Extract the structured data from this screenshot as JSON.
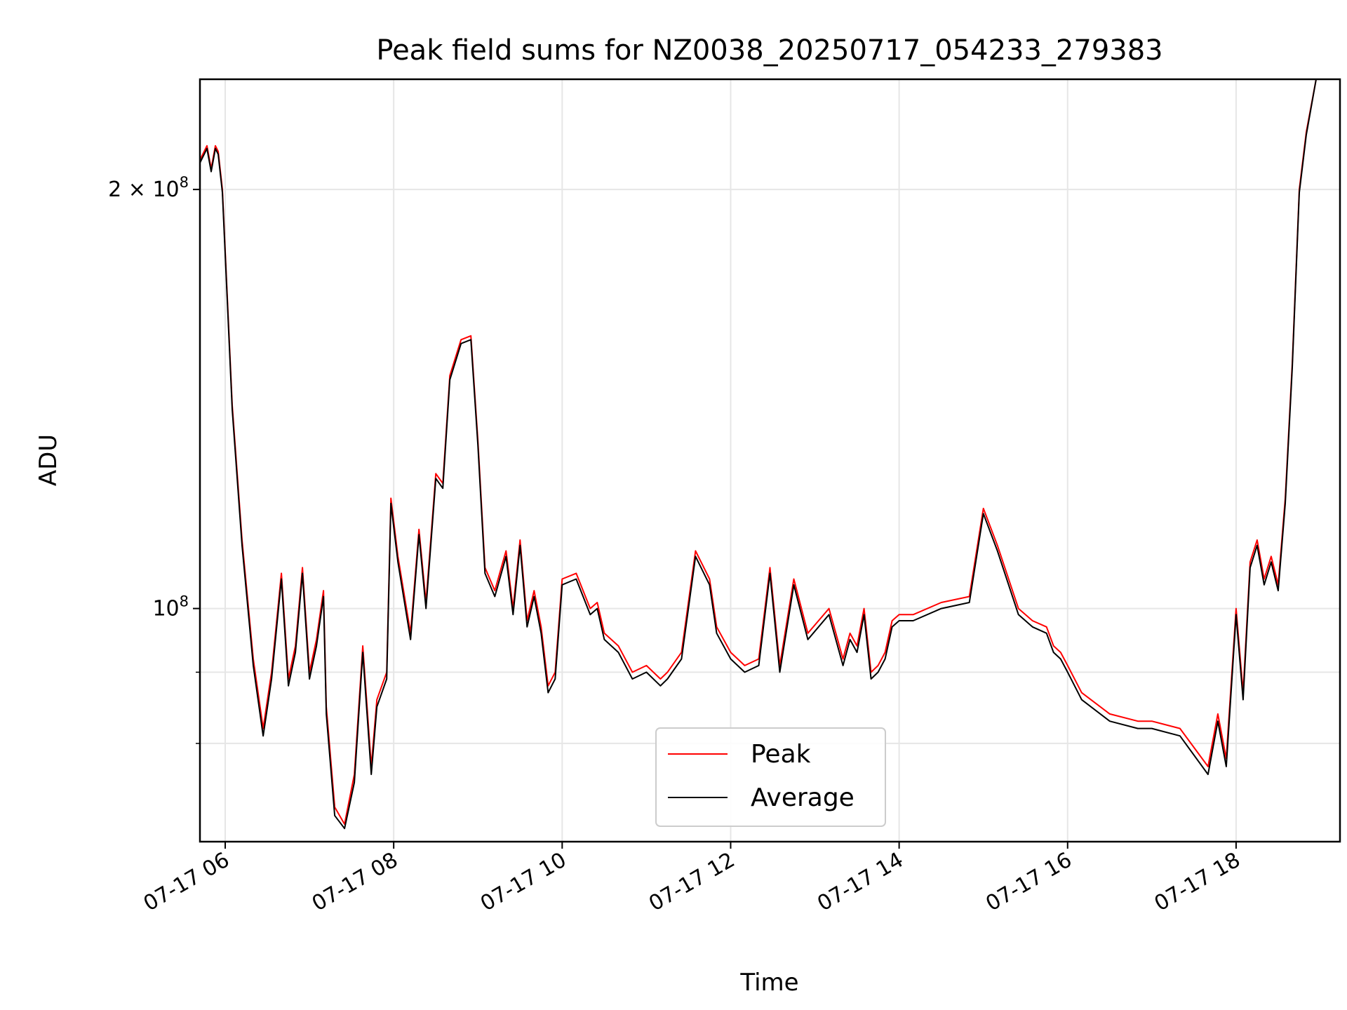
{
  "chart_data": {
    "type": "line",
    "title": "Peak field sums for NZ0038_20250717_054233_279383",
    "xlabel": "Time",
    "ylabel": "ADU",
    "y_scale": "log",
    "ylim": [
      68000000,
      240000000
    ],
    "xlim": [
      "2025-07-17 05:42",
      "2025-07-17 19:14"
    ],
    "grid": true,
    "legend_position": "lower-center",
    "x_ticks": [
      {
        "value": "2025-07-17 06:00",
        "label": "07-17 06"
      },
      {
        "value": "2025-07-17 08:00",
        "label": "07-17 08"
      },
      {
        "value": "2025-07-17 10:00",
        "label": "07-17 10"
      },
      {
        "value": "2025-07-17 12:00",
        "label": "07-17 12"
      },
      {
        "value": "2025-07-17 14:00",
        "label": "07-17 14"
      },
      {
        "value": "2025-07-17 16:00",
        "label": "07-17 16"
      },
      {
        "value": "2025-07-17 18:00",
        "label": "07-17 18"
      }
    ],
    "y_ticks_major": [
      {
        "value": 100000000,
        "base": "10",
        "exp": "8",
        "mantissa": ""
      },
      {
        "value": 200000000,
        "base": "10",
        "exp": "8",
        "mantissa": "2 × "
      }
    ],
    "y_ticks_minor": [
      80000000,
      90000000
    ],
    "x": [
      "2025-07-17 05:42",
      "2025-07-17 05:47",
      "2025-07-17 05:50",
      "2025-07-17 05:53",
      "2025-07-17 05:55",
      "2025-07-17 05:58",
      "2025-07-17 06:05",
      "2025-07-17 06:12",
      "2025-07-17 06:20",
      "2025-07-17 06:27",
      "2025-07-17 06:33",
      "2025-07-17 06:40",
      "2025-07-17 06:45",
      "2025-07-17 06:50",
      "2025-07-17 06:55",
      "2025-07-17 07:00",
      "2025-07-17 07:05",
      "2025-07-17 07:10",
      "2025-07-17 07:12",
      "2025-07-17 07:18",
      "2025-07-17 07:25",
      "2025-07-17 07:32",
      "2025-07-17 07:38",
      "2025-07-17 07:44",
      "2025-07-17 07:48",
      "2025-07-17 07:55",
      "2025-07-17 07:58",
      "2025-07-17 08:03",
      "2025-07-17 08:12",
      "2025-07-17 08:18",
      "2025-07-17 08:23",
      "2025-07-17 08:30",
      "2025-07-17 08:35",
      "2025-07-17 08:40",
      "2025-07-17 08:48",
      "2025-07-17 08:55",
      "2025-07-17 09:00",
      "2025-07-17 09:05",
      "2025-07-17 09:12",
      "2025-07-17 09:20",
      "2025-07-17 09:25",
      "2025-07-17 09:30",
      "2025-07-17 09:35",
      "2025-07-17 09:40",
      "2025-07-17 09:45",
      "2025-07-17 09:50",
      "2025-07-17 09:55",
      "2025-07-17 10:00",
      "2025-07-17 10:10",
      "2025-07-17 10:20",
      "2025-07-17 10:25",
      "2025-07-17 10:30",
      "2025-07-17 10:40",
      "2025-07-17 10:50",
      "2025-07-17 11:00",
      "2025-07-17 11:10",
      "2025-07-17 11:15",
      "2025-07-17 11:25",
      "2025-07-17 11:35",
      "2025-07-17 11:45",
      "2025-07-17 11:50",
      "2025-07-17 12:00",
      "2025-07-17 12:10",
      "2025-07-17 12:20",
      "2025-07-17 12:28",
      "2025-07-17 12:35",
      "2025-07-17 12:45",
      "2025-07-17 12:55",
      "2025-07-17 13:10",
      "2025-07-17 13:20",
      "2025-07-17 13:25",
      "2025-07-17 13:30",
      "2025-07-17 13:35",
      "2025-07-17 13:40",
      "2025-07-17 13:45",
      "2025-07-17 13:50",
      "2025-07-17 13:55",
      "2025-07-17 14:00",
      "2025-07-17 14:10",
      "2025-07-17 14:30",
      "2025-07-17 14:50",
      "2025-07-17 15:00",
      "2025-07-17 15:10",
      "2025-07-17 15:25",
      "2025-07-17 15:35",
      "2025-07-17 15:45",
      "2025-07-17 15:50",
      "2025-07-17 15:55",
      "2025-07-17 16:00",
      "2025-07-17 16:10",
      "2025-07-17 16:30",
      "2025-07-17 16:50",
      "2025-07-17 17:00",
      "2025-07-17 17:20",
      "2025-07-17 17:40",
      "2025-07-17 17:47",
      "2025-07-17 17:53",
      "2025-07-17 18:00",
      "2025-07-17 18:05",
      "2025-07-17 18:10",
      "2025-07-17 18:15",
      "2025-07-17 18:20",
      "2025-07-17 18:25",
      "2025-07-17 18:30",
      "2025-07-17 18:35",
      "2025-07-17 18:40",
      "2025-07-17 18:45",
      "2025-07-17 18:50",
      "2025-07-17 18:57",
      "2025-07-17 19:03",
      "2025-07-17 19:07",
      "2025-07-17 19:10"
    ],
    "series": [
      {
        "name": "Peak",
        "color": "#ff0000",
        "values": [
          210000000,
          215000000,
          207000000,
          215000000,
          213000000,
          200000000,
          140000000,
          112000000,
          92000000,
          82000000,
          90000000,
          106000000,
          89000000,
          94000000,
          107000000,
          90000000,
          95000000,
          103000000,
          85000000,
          72000000,
          70000000,
          76000000,
          94000000,
          77000000,
          86000000,
          90000000,
          120000000,
          109000000,
          96000000,
          114000000,
          101000000,
          125000000,
          123000000,
          147000000,
          156000000,
          157000000,
          132000000,
          107000000,
          103000000,
          110000000,
          100000000,
          112000000,
          98000000,
          103000000,
          97000000,
          88000000,
          90000000,
          105000000,
          106000000,
          100000000,
          101000000,
          96000000,
          94000000,
          90000000,
          91000000,
          89000000,
          90000000,
          93000000,
          110000000,
          105000000,
          97000000,
          93000000,
          91000000,
          92000000,
          107000000,
          91000000,
          105000000,
          96000000,
          100000000,
          92000000,
          96000000,
          94000000,
          100000000,
          90000000,
          91000000,
          93000000,
          98000000,
          99000000,
          99000000,
          101000000,
          102000000,
          118000000,
          111000000,
          100000000,
          98000000,
          97000000,
          94000000,
          93000000,
          91000000,
          87000000,
          84000000,
          83000000,
          83000000,
          82000000,
          77000000,
          84000000,
          78000000,
          100000000,
          87000000,
          108000000,
          112000000,
          105000000,
          109000000,
          104000000,
          120000000,
          150000000,
          200000000,
          220000000,
          240000000,
          240000000,
          240000000,
          240000000
        ]
      },
      {
        "name": "Average",
        "color": "#000000",
        "values": [
          209000000,
          214000000,
          206000000,
          214000000,
          212000000,
          199000000,
          139000000,
          111000000,
          91000000,
          81000000,
          89000000,
          105000000,
          88000000,
          93000000,
          106000000,
          89000000,
          94000000,
          102000000,
          84000000,
          71000000,
          69500000,
          75000000,
          93000000,
          76000000,
          85000000,
          89000000,
          119000000,
          108000000,
          95000000,
          113000000,
          100000000,
          124000000,
          122000000,
          146000000,
          155000000,
          156000000,
          131000000,
          106000000,
          102000000,
          109000000,
          99000000,
          111000000,
          97000000,
          102000000,
          96000000,
          87000000,
          89000000,
          104000000,
          105000000,
          99000000,
          100000000,
          95000000,
          93000000,
          89000000,
          90000000,
          88000000,
          89000000,
          92000000,
          109000000,
          104000000,
          96000000,
          92000000,
          90000000,
          91000000,
          106000000,
          90000000,
          104000000,
          95000000,
          99000000,
          91000000,
          95000000,
          93000000,
          99000000,
          89000000,
          90000000,
          92000000,
          97000000,
          98000000,
          98000000,
          100000000,
          101000000,
          117000000,
          110000000,
          99000000,
          97000000,
          96000000,
          93000000,
          92000000,
          90000000,
          86000000,
          83000000,
          82000000,
          82000000,
          81000000,
          76000000,
          83000000,
          77000000,
          99000000,
          86000000,
          107000000,
          111000000,
          104000000,
          108000000,
          103000000,
          119000000,
          149000000,
          199000000,
          219000000,
          240000000,
          240000000,
          240000000,
          240000000
        ]
      }
    ]
  }
}
